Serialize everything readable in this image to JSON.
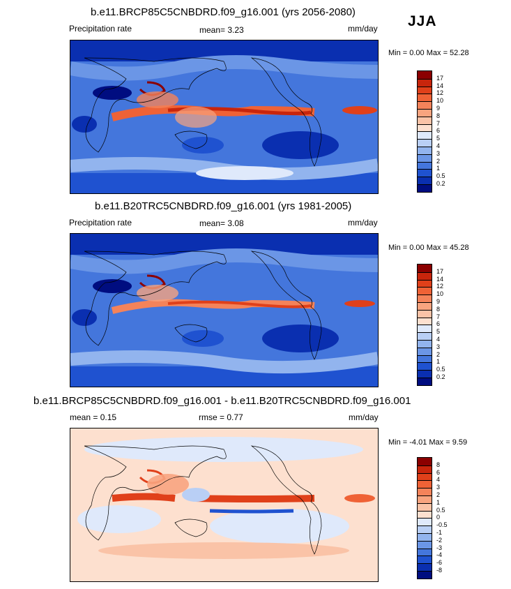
{
  "season": "JJA",
  "panels": [
    {
      "title": "b.e11.BRCP85C5CNBDRD.f09_g16.001 (yrs 2056-2080)",
      "left": "Precipitation rate",
      "mid": "mean=   3.23",
      "units": "mm/day",
      "minmax": "Min =   0.00 Max =  52.28",
      "colorbar": {
        "labels": [
          "17",
          "14",
          "12",
          "10",
          "9",
          "8",
          "7",
          "6",
          "5",
          "4",
          "3",
          "2",
          "1",
          "0.5",
          "0.2"
        ],
        "colors": [
          "#8b0000",
          "#c8250c",
          "#e0401a",
          "#ef6236",
          "#f4835a",
          "#f8a47f",
          "#fac3a7",
          "#fde0cf",
          "#dfe9fb",
          "#b9cff5",
          "#92b4ee",
          "#6b96e6",
          "#4476dc",
          "#1f52d0",
          "#0a2fb0",
          "#000d80"
        ]
      }
    },
    {
      "title": "b.e11.B20TRC5CNBDRD.f09_g16.001 (yrs 1981-2005)",
      "left": "Precipitation rate",
      "mid": "mean=   3.08",
      "units": "mm/day",
      "minmax": "Min =   0.00 Max =  45.28",
      "colorbar": {
        "labels": [
          "17",
          "14",
          "12",
          "10",
          "9",
          "8",
          "7",
          "6",
          "5",
          "4",
          "3",
          "2",
          "1",
          "0.5",
          "0.2"
        ],
        "colors": [
          "#8b0000",
          "#c8250c",
          "#e0401a",
          "#ef6236",
          "#f4835a",
          "#f8a47f",
          "#fac3a7",
          "#fde0cf",
          "#dfe9fb",
          "#b9cff5",
          "#92b4ee",
          "#6b96e6",
          "#4476dc",
          "#1f52d0",
          "#0a2fb0",
          "#000d80"
        ]
      }
    },
    {
      "title": "b.e11.BRCP85C5CNBDRD.f09_g16.001 - b.e11.B20TRC5CNBDRD.f09_g16.001",
      "left": "mean =   0.15",
      "mid": "rmse =   0.77",
      "units": "mm/day",
      "minmax": "Min =  -4.01 Max =   9.59",
      "colorbar": {
        "labels": [
          "8",
          "6",
          "4",
          "3",
          "2",
          "1",
          "0.5",
          "0",
          "-0.5",
          "-1",
          "-2",
          "-3",
          "-4",
          "-6",
          "-8"
        ],
        "colors": [
          "#8b0000",
          "#c8250c",
          "#e0401a",
          "#ef6236",
          "#f4835a",
          "#f8a47f",
          "#fac3a7",
          "#fde0cf",
          "#dfe9fb",
          "#b9cff5",
          "#92b4ee",
          "#6b96e6",
          "#4476dc",
          "#1f52d0",
          "#0a2fb0",
          "#000d80"
        ]
      }
    }
  ],
  "chart_data": [
    {
      "type": "heatmap",
      "title": "b.e11.BRCP85C5CNBDRD.f09_g16.001 (yrs 2056-2080)",
      "variable": "Precipitation rate",
      "units": "mm/day",
      "mean": 3.23,
      "min": 0.0,
      "max": 52.28,
      "contour_levels": [
        0.2,
        0.5,
        1,
        2,
        3,
        4,
        5,
        6,
        7,
        8,
        9,
        10,
        12,
        14,
        17
      ]
    },
    {
      "type": "heatmap",
      "title": "b.e11.B20TRC5CNBDRD.f09_g16.001 (yrs 1981-2005)",
      "variable": "Precipitation rate",
      "units": "mm/day",
      "mean": 3.08,
      "min": 0.0,
      "max": 45.28,
      "contour_levels": [
        0.2,
        0.5,
        1,
        2,
        3,
        4,
        5,
        6,
        7,
        8,
        9,
        10,
        12,
        14,
        17
      ]
    },
    {
      "type": "heatmap",
      "title": "b.e11.BRCP85C5CNBDRD.f09_g16.001 - b.e11.B20TRC5CNBDRD.f09_g16.001",
      "units": "mm/day",
      "mean": 0.15,
      "rmse": 0.77,
      "min": -4.01,
      "max": 9.59,
      "contour_levels": [
        -8,
        -6,
        -4,
        -3,
        -2,
        -1,
        -0.5,
        0,
        0.5,
        1,
        2,
        3,
        4,
        6,
        8
      ]
    }
  ]
}
